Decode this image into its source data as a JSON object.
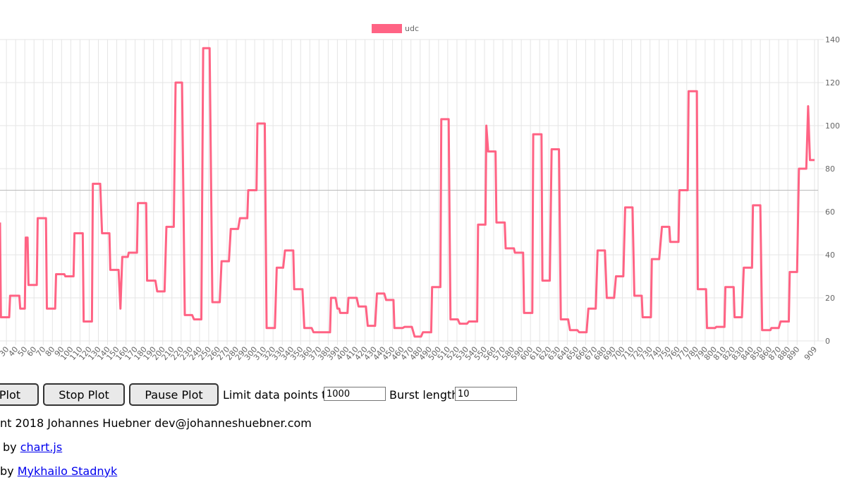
{
  "chart_data": {
    "type": "line",
    "x": [
      23,
      24,
      33,
      34,
      44,
      45,
      50,
      51,
      53,
      54,
      63,
      64,
      73,
      74,
      83,
      84,
      93,
      94,
      103,
      104,
      113,
      114,
      123,
      124,
      132,
      134,
      142,
      143,
      152,
      154,
      156,
      162,
      163,
      172,
      173,
      182,
      183,
      192,
      194,
      202,
      204,
      212,
      214,
      221,
      224,
      232,
      234,
      242,
      244,
      251,
      254,
      262,
      264,
      272,
      274,
      282,
      284,
      292,
      293,
      302,
      303,
      311,
      313,
      322,
      324,
      331,
      333,
      342,
      343,
      352,
      354,
      362,
      364,
      382,
      383,
      388,
      390,
      392,
      393,
      401,
      402,
      411,
      413,
      421,
      423,
      431,
      433,
      441,
      443,
      451,
      452,
      461,
      463,
      471,
      474,
      481,
      483,
      492,
      493,
      502,
      503,
      511,
      513,
      521,
      523,
      531,
      533,
      542,
      543,
      551,
      552,
      554,
      562,
      563,
      572,
      573,
      582,
      583,
      592,
      593,
      602,
      603,
      612,
      613,
      621,
      623,
      631,
      633,
      641,
      643,
      651,
      653,
      661,
      663,
      671,
      673,
      681,
      683,
      691,
      693,
      701,
      703,
      711,
      713,
      721,
      722,
      731,
      732,
      740,
      743,
      751,
      752,
      761,
      762,
      771,
      772,
      781,
      782,
      791,
      792,
      801,
      802,
      811,
      812,
      821,
      822,
      830,
      832,
      841,
      842,
      850,
      852,
      861,
      862,
      870,
      872,
      881,
      882,
      890,
      892,
      900,
      902,
      904,
      909
    ],
    "series": [
      {
        "name": "udc",
        "color": "#ff6384",
        "values": [
          55,
          11,
          11,
          21,
          21,
          15,
          15,
          48,
          48,
          26,
          26,
          57,
          57,
          15,
          15,
          31,
          31,
          30,
          30,
          50,
          50,
          9,
          9,
          73,
          73,
          50,
          50,
          33,
          33,
          15,
          39,
          39,
          41,
          41,
          64,
          64,
          28,
          28,
          23,
          23,
          53,
          53,
          120,
          120,
          12,
          12,
          10,
          10,
          136,
          136,
          18,
          18,
          37,
          37,
          52,
          52,
          57,
          57,
          70,
          70,
          101,
          101,
          6,
          6,
          34,
          34,
          42,
          42,
          24,
          24,
          6,
          6,
          4,
          4,
          20,
          20,
          15,
          15,
          13,
          13,
          20,
          20,
          16,
          16,
          7,
          7,
          22,
          22,
          19,
          19,
          6,
          6,
          6.5,
          6.5,
          2,
          2,
          4,
          4,
          25,
          25,
          103,
          103,
          10,
          10,
          8,
          8,
          9,
          9,
          54,
          54,
          100,
          88,
          88,
          55,
          55,
          43,
          43,
          41,
          41,
          13,
          13,
          96,
          96,
          28,
          28,
          89,
          89,
          10,
          10,
          5,
          5,
          4,
          4,
          15,
          15,
          42,
          42,
          20,
          20,
          30,
          30,
          62,
          62,
          21,
          21,
          11,
          11,
          38,
          38,
          53,
          53,
          46,
          46,
          70,
          70,
          116,
          116,
          24,
          24,
          6,
          6,
          6.5,
          6.5,
          25,
          25,
          11,
          11,
          34,
          34,
          63,
          63,
          5,
          5,
          6,
          6,
          9,
          9,
          32,
          32,
          80,
          80,
          109,
          84,
          84
        ]
      }
    ],
    "xlim": [
      23,
      909
    ],
    "xticks": [
      30,
      40,
      50,
      60,
      70,
      80,
      90,
      100,
      110,
      120,
      130,
      140,
      150,
      160,
      170,
      180,
      190,
      200,
      210,
      220,
      230,
      240,
      250,
      260,
      270,
      280,
      290,
      300,
      310,
      320,
      330,
      340,
      350,
      360,
      370,
      380,
      390,
      400,
      410,
      420,
      430,
      440,
      450,
      460,
      470,
      480,
      490,
      500,
      510,
      520,
      530,
      540,
      550,
      560,
      570,
      580,
      590,
      600,
      610,
      620,
      630,
      640,
      650,
      660,
      670,
      680,
      690,
      700,
      710,
      720,
      730,
      740,
      750,
      760,
      770,
      780,
      790,
      800,
      810,
      820,
      830,
      840,
      850,
      860,
      870,
      880,
      890,
      909
    ],
    "ylim": [
      0,
      140
    ],
    "yticks": [
      0,
      20,
      40,
      60,
      80,
      100,
      120,
      140
    ],
    "hline": 70,
    "grid": true
  },
  "controls": {
    "start": "Plot",
    "stop": "Stop Plot",
    "pause": "Pause Plot",
    "limit_label": "Limit data points to:",
    "limit_value": "1000",
    "burst_label": "Burst length:",
    "burst_value": "10"
  },
  "footer": {
    "copyright": "nt 2018 Johannes Huebner dev@johanneshuebner.com",
    "chart_prefix": "by",
    "chart_link": "chart.js",
    "author_prefix": "by",
    "author_link": "Mykhailo Stadnyk"
  }
}
